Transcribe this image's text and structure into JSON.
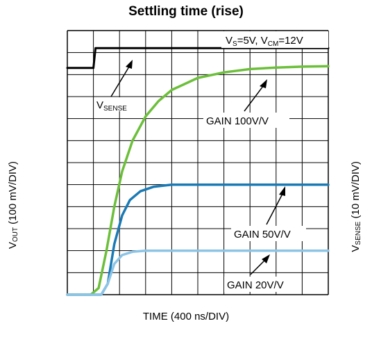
{
  "chart_data": {
    "type": "line",
    "title": "Settling time (rise)",
    "xlabel": "TIME (400 ns/DIV)",
    "ylabel_left": {
      "main": "V",
      "sub": "OUT",
      "rest": " (100 mV/DIV)"
    },
    "ylabel_right": {
      "main": "V",
      "sub": "SENSE",
      "rest": " (10 mV/DIV)"
    },
    "grid": true,
    "x_divisions": 10,
    "y_divisions": 12,
    "x_range_div": [
      0,
      10
    ],
    "y_range_div": [
      0,
      12
    ],
    "conditions": {
      "p1": "V",
      "s1": "S",
      "p2": "=5V, V",
      "s2": "CM",
      "p3": "=12V"
    },
    "series": [
      {
        "key": "vsense",
        "color": "#000000",
        "points": [
          [
            0,
            10.3
          ],
          [
            1.0,
            10.3
          ],
          [
            1.08,
            11.2
          ],
          [
            10,
            11.2
          ]
        ]
      },
      {
        "key": "gain100",
        "color": "#6cbf3a",
        "points": [
          [
            0,
            0
          ],
          [
            0.9,
            0
          ],
          [
            1.2,
            0.3
          ],
          [
            1.5,
            2.0
          ],
          [
            1.8,
            4.0
          ],
          [
            2.1,
            5.6
          ],
          [
            2.5,
            7.0
          ],
          [
            3.0,
            8.1
          ],
          [
            3.5,
            8.8
          ],
          [
            4,
            9.3
          ],
          [
            5,
            9.85
          ],
          [
            6,
            10.1
          ],
          [
            7,
            10.25
          ],
          [
            8,
            10.32
          ],
          [
            9,
            10.36
          ],
          [
            10,
            10.38
          ]
        ]
      },
      {
        "key": "gain50",
        "color": "#1a7ab5",
        "points": [
          [
            0,
            0
          ],
          [
            1.3,
            0
          ],
          [
            1.55,
            0.5
          ],
          [
            1.8,
            2.3
          ],
          [
            2.1,
            3.6
          ],
          [
            2.4,
            4.3
          ],
          [
            2.8,
            4.7
          ],
          [
            3.3,
            4.9
          ],
          [
            4,
            5.0
          ],
          [
            10,
            5.0
          ]
        ]
      },
      {
        "key": "gain20",
        "color": "#8cc4e6",
        "points": [
          [
            0,
            0
          ],
          [
            1.3,
            0
          ],
          [
            1.55,
            0.5
          ],
          [
            1.8,
            1.4
          ],
          [
            2.1,
            1.8
          ],
          [
            2.5,
            1.95
          ],
          [
            3,
            2.0
          ],
          [
            10,
            2.0
          ]
        ]
      }
    ],
    "annotations": [
      {
        "key": "vsense_label",
        "main": "V",
        "sub": "SENSE"
      },
      {
        "key": "gain100_label",
        "text": "GAIN 100V/V"
      },
      {
        "key": "gain50_label",
        "text": "GAIN 50V/V"
      },
      {
        "key": "gain20_label",
        "text": "GAIN 20V/V"
      }
    ]
  }
}
